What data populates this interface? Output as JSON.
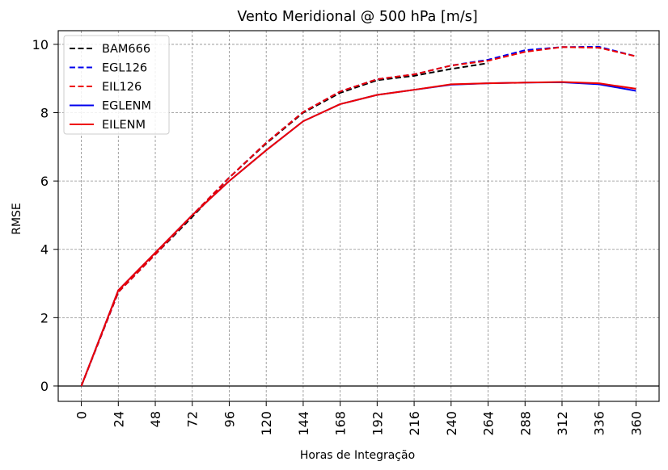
{
  "chart_data": {
    "type": "line",
    "title": "Vento Meridional @ 500 hPa [m/s]",
    "xlabel": "Horas de Integração",
    "ylabel": "RMSE",
    "xlim": [
      -15,
      375
    ],
    "ylim": [
      -0.45,
      10.4
    ],
    "grid": true,
    "legend_position": "top-left",
    "x_ticks": [
      "0",
      "24",
      "48",
      "72",
      "96",
      "120",
      "144",
      "168",
      "192",
      "216",
      "240",
      "264",
      "288",
      "312",
      "336",
      "360"
    ],
    "y_ticks": [
      "0",
      "2",
      "4",
      "6",
      "8",
      "10"
    ],
    "zero_line": 0,
    "series": [
      {
        "name": "BAM666",
        "color": "#000000",
        "style": "dashed",
        "x": [
          0,
          24,
          48,
          72,
          96,
          120,
          144,
          168,
          192,
          216,
          240,
          264
        ],
        "y": [
          0,
          2.75,
          3.85,
          4.95,
          6.1,
          7.1,
          8.0,
          8.58,
          8.95,
          9.08,
          9.28,
          9.45
        ]
      },
      {
        "name": "EGL126",
        "color": "#0000ee",
        "style": "dashed",
        "x": [
          0,
          24,
          48,
          72,
          96,
          120,
          144,
          168,
          192,
          216,
          240,
          264,
          288,
          312,
          336,
          360
        ],
        "y": [
          0,
          2.75,
          3.85,
          5.0,
          6.1,
          7.12,
          8.02,
          8.62,
          8.98,
          9.12,
          9.38,
          9.55,
          9.83,
          9.92,
          9.93,
          9.65
        ]
      },
      {
        "name": "EIL126",
        "color": "#ee0000",
        "style": "dashed",
        "x": [
          0,
          24,
          48,
          72,
          96,
          120,
          144,
          168,
          192,
          216,
          240,
          264,
          288,
          312,
          336,
          360
        ],
        "y": [
          0,
          2.75,
          3.85,
          5.0,
          6.1,
          7.12,
          8.02,
          8.62,
          8.98,
          9.12,
          9.38,
          9.52,
          9.78,
          9.92,
          9.9,
          9.65
        ]
      },
      {
        "name": "EGLENM",
        "color": "#0000ee",
        "style": "solid",
        "x": [
          0,
          24,
          48,
          72,
          96,
          120,
          144,
          168,
          192,
          216,
          240,
          264,
          288,
          312,
          336,
          360
        ],
        "y": [
          0,
          2.8,
          3.9,
          5.0,
          6.0,
          6.9,
          7.75,
          8.25,
          8.52,
          8.67,
          8.82,
          8.86,
          8.88,
          8.89,
          8.83,
          8.64
        ]
      },
      {
        "name": "EILENM",
        "color": "#ee0000",
        "style": "solid",
        "x": [
          0,
          24,
          48,
          72,
          96,
          120,
          144,
          168,
          192,
          216,
          240,
          264,
          288,
          312,
          336,
          360
        ],
        "y": [
          0,
          2.8,
          3.9,
          5.0,
          6.0,
          6.9,
          7.75,
          8.25,
          8.52,
          8.67,
          8.83,
          8.86,
          8.88,
          8.9,
          8.86,
          8.7
        ]
      }
    ]
  }
}
